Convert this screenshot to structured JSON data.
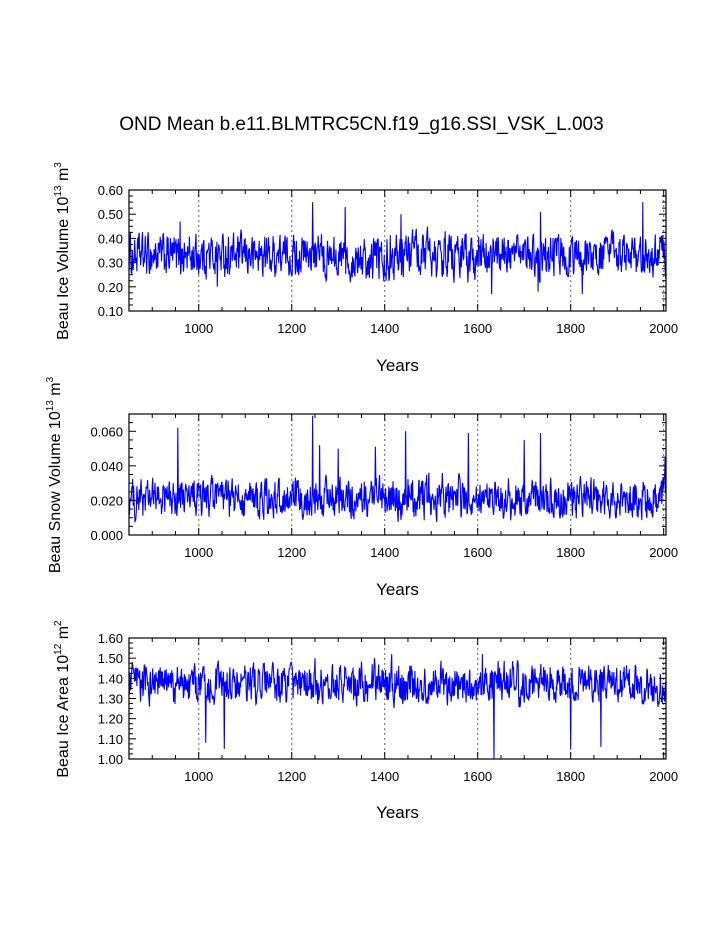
{
  "title": "OND Mean b.e11.BLMTRC5CN.f19_g16.SSI_VSK_L.003",
  "line_color": "#0000ff",
  "grid_color": "#666666",
  "chart_data": [
    {
      "type": "line",
      "name": "ice-volume",
      "series": [
        {
          "name": "Beau Ice Volume",
          "x_start": 850,
          "x_end": 2005,
          "y_min": 0.17,
          "y_max": 0.55,
          "y_mean": 0.33,
          "spread": 0.055
        }
      ],
      "title": "",
      "xlabel": "Years",
      "ylabel_parts": [
        "Beau Ice Volume 10",
        "13",
        " m",
        "3"
      ],
      "xlim": [
        850,
        2005
      ],
      "ylim": [
        0.1,
        0.6
      ],
      "xticks": [
        1000,
        1200,
        1400,
        1600,
        1800,
        2000
      ],
      "yticks": [
        "0.10",
        "0.20",
        "0.30",
        "0.40",
        "0.50",
        "0.60"
      ],
      "ytick_values": [
        0.1,
        0.2,
        0.3,
        0.4,
        0.5,
        0.6
      ],
      "peaks": [
        [
          960,
          0.47
        ],
        [
          1245,
          0.55
        ],
        [
          1315,
          0.53
        ],
        [
          1435,
          0.5
        ],
        [
          1735,
          0.51
        ],
        [
          1955,
          0.55
        ],
        [
          1040,
          0.2
        ],
        [
          1630,
          0.16
        ],
        [
          1730,
          0.18
        ],
        [
          1825,
          0.17
        ]
      ]
    },
    {
      "type": "line",
      "name": "snow-volume",
      "series": [
        {
          "name": "Beau Snow Volume",
          "x_start": 850,
          "x_end": 2005,
          "y_min": 0.005,
          "y_max": 0.069,
          "y_mean": 0.021,
          "spread": 0.007
        }
      ],
      "title": "",
      "xlabel": "Years",
      "ylabel_parts": [
        "Beau Snow Volume 10",
        "13",
        " m",
        "3"
      ],
      "xlim": [
        850,
        2005
      ],
      "ylim": [
        0.0,
        0.07
      ],
      "xticks": [
        1000,
        1200,
        1400,
        1600,
        1800,
        2000
      ],
      "yticks": [
        "0.000",
        "0.020",
        "0.040",
        "0.060"
      ],
      "ytick_values": [
        0.0,
        0.02,
        0.04,
        0.06
      ],
      "peaks": [
        [
          955,
          0.062
        ],
        [
          1245,
          0.069
        ],
        [
          1260,
          0.052
        ],
        [
          1300,
          0.05
        ],
        [
          1445,
          0.06
        ],
        [
          1580,
          0.059
        ],
        [
          1735,
          0.059
        ],
        [
          1700,
          0.055
        ],
        [
          2003,
          0.045
        ],
        [
          1380,
          0.051
        ]
      ]
    },
    {
      "type": "line",
      "name": "ice-area",
      "series": [
        {
          "name": "Beau Ice Area",
          "x_start": 850,
          "x_end": 2005,
          "y_min": 1.0,
          "y_max": 1.52,
          "y_mean": 1.37,
          "spread": 0.06
        }
      ],
      "title": "",
      "xlabel": "Years",
      "ylabel_parts": [
        "Beau Ice Area 10",
        "12",
        " m",
        "2"
      ],
      "xlim": [
        850,
        2005
      ],
      "ylim": [
        1.0,
        1.6
      ],
      "xticks": [
        1000,
        1200,
        1400,
        1600,
        1800,
        2000
      ],
      "yticks": [
        "1.00",
        "1.10",
        "1.20",
        "1.30",
        "1.40",
        "1.50",
        "1.60"
      ],
      "ytick_values": [
        1.0,
        1.1,
        1.2,
        1.3,
        1.4,
        1.5,
        1.6
      ],
      "peaks": [
        [
          1015,
          1.08
        ],
        [
          1055,
          1.05
        ],
        [
          1635,
          1.0
        ],
        [
          1800,
          1.05
        ],
        [
          1865,
          1.06
        ],
        [
          1610,
          1.52
        ],
        [
          1415,
          1.52
        ],
        [
          1250,
          1.5
        ]
      ]
    }
  ]
}
